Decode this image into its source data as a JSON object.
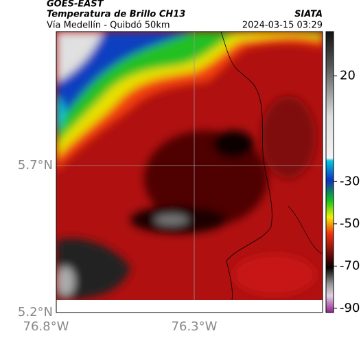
{
  "header": {
    "agency": "GOES-EAST",
    "product": "Temperatura de Brillo CH13",
    "location": "Vía Medellín - Quibdó 50km",
    "org": "SIATA",
    "timestamp": "2024-03-15 03:29"
  },
  "map": {
    "lat_ticks": [
      "5.7°N",
      "5.2°N"
    ],
    "lon_ticks": [
      "76.8°W",
      "76.3°W"
    ]
  },
  "colorbar": {
    "lim": [
      -92,
      41
    ],
    "ticks": [
      20,
      -30,
      -50,
      -70,
      -90
    ]
  }
}
